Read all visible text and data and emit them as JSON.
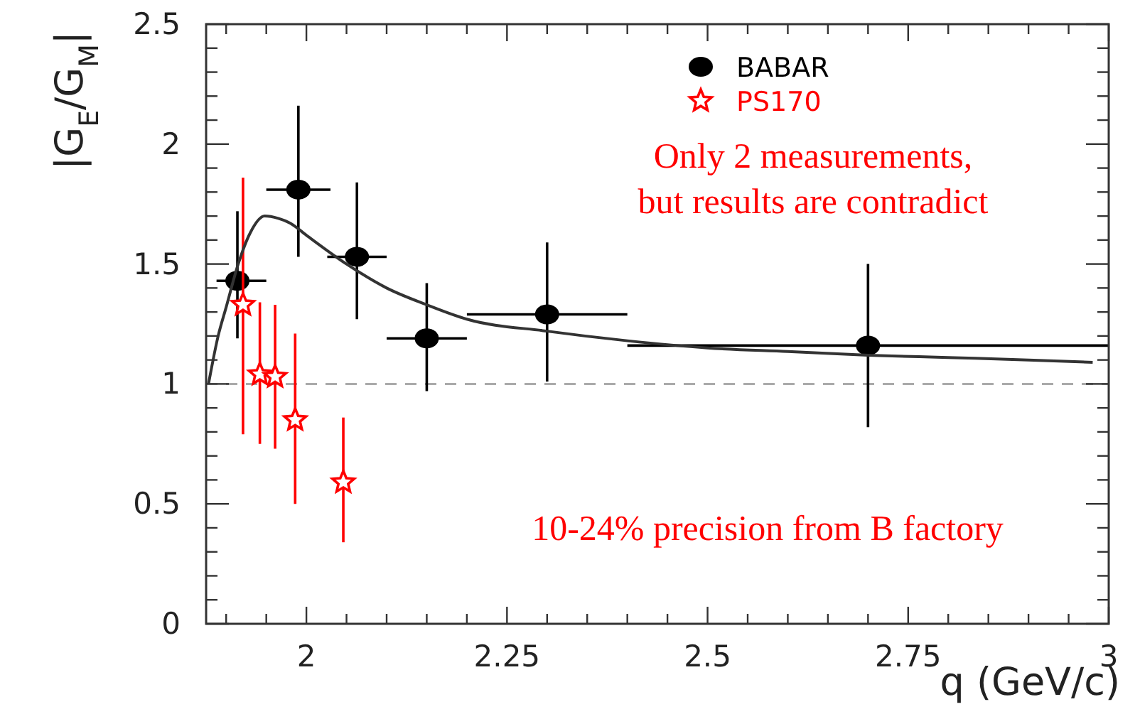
{
  "chart_data": {
    "type": "scatter",
    "xlabel": "q (GeV/c)",
    "ylabel": "|G$_{E}$/G$_{M}$|",
    "xlim": [
      1.875,
      3
    ],
    "ylim": [
      0,
      2.5
    ],
    "xticks": [
      {
        "value": 1.9,
        "label": null
      },
      {
        "value": 1.95,
        "label": null
      },
      2,
      {
        "value": 2.05,
        "label": null
      },
      {
        "value": 2.1,
        "label": null
      },
      {
        "value": 2.15,
        "label": null
      },
      {
        "value": 2.2,
        "label": null
      },
      2.25,
      {
        "value": 2.3,
        "label": null
      },
      {
        "value": 2.35,
        "label": null
      },
      {
        "value": 2.4,
        "label": null
      },
      {
        "value": 2.45,
        "label": null
      },
      2.5,
      {
        "value": 2.55,
        "label": null
      },
      {
        "value": 2.6,
        "label": null
      },
      {
        "value": 2.65,
        "label": null
      },
      {
        "value": 2.7,
        "label": null
      },
      2.75,
      {
        "value": 2.8,
        "label": null
      },
      {
        "value": 2.85,
        "label": null
      },
      {
        "value": 2.9,
        "label": null
      },
      {
        "value": 2.95,
        "label": null
      },
      3
    ],
    "yticks": [
      0,
      {
        "value": 0.1,
        "label": null
      },
      {
        "value": 0.2,
        "label": null
      },
      {
        "value": 0.3,
        "label": null
      },
      {
        "value": 0.4,
        "label": null
      },
      0.5,
      {
        "value": 0.6,
        "label": null
      },
      {
        "value": 0.7,
        "label": null
      },
      {
        "value": 0.8,
        "label": null
      },
      {
        "value": 0.9,
        "label": null
      },
      1,
      {
        "value": 1.1,
        "label": null
      },
      {
        "value": 1.2,
        "label": null
      },
      {
        "value": 1.3,
        "label": null
      },
      {
        "value": 1.4,
        "label": null
      },
      1.5,
      {
        "value": 1.6,
        "label": null
      },
      {
        "value": 1.7,
        "label": null
      },
      {
        "value": 1.8,
        "label": null
      },
      {
        "value": 1.9,
        "label": null
      },
      2,
      {
        "value": 2.1,
        "label": null
      },
      {
        "value": 2.2,
        "label": null
      },
      {
        "value": 2.3,
        "label": null
      },
      {
        "value": 2.4,
        "label": null
      },
      2.5
    ],
    "grid": false,
    "legend": "top right",
    "series": [
      {
        "name": "BABAR",
        "marker": "circle",
        "color": "#000000",
        "x": [
          1.914,
          1.99,
          2.063,
          2.15,
          2.3,
          2.7
        ],
        "values": [
          1.43,
          1.81,
          1.53,
          1.19,
          1.29,
          1.16
        ],
        "errors": [
          [
            1.19,
            1.72
          ],
          [
            1.53,
            2.16
          ],
          [
            1.27,
            1.84
          ],
          [
            0.97,
            1.42
          ],
          [
            1.01,
            1.59
          ],
          [
            0.82,
            1.5
          ]
        ],
        "xerrors": [
          [
            1.888,
            1.95
          ],
          [
            1.95,
            2.03
          ],
          [
            2.026,
            2.1
          ],
          [
            2.1,
            2.2
          ],
          [
            2.2,
            2.4
          ],
          [
            2.4,
            3
          ]
        ]
      },
      {
        "name": "PS170",
        "marker": "star",
        "color": "#ff0000",
        "x": [
          1.921,
          1.942,
          1.961,
          1.986,
          2.046
        ],
        "values": [
          1.33,
          1.04,
          1.03,
          0.85,
          0.59
        ],
        "errors": [
          [
            0.79,
            1.86
          ],
          [
            0.75,
            1.34
          ],
          [
            0.73,
            1.33
          ],
          [
            0.5,
            1.21
          ],
          [
            0.34,
            0.86
          ]
        ]
      },
      {
        "type": "line",
        "marker": "none",
        "line_style": "solid",
        "color": "#333333",
        "x": [
          1.878,
          1.89,
          1.9,
          1.915,
          1.93,
          1.948,
          1.965,
          1.98,
          2.0,
          2.05,
          2.1,
          2.15,
          2.2,
          2.3,
          2.4,
          2.5,
          2.6,
          2.7,
          2.8,
          2.9,
          2.98
        ],
        "values": [
          1.0,
          1.2,
          1.32,
          1.5,
          1.63,
          1.7,
          1.69,
          1.67,
          1.62,
          1.5,
          1.4,
          1.33,
          1.27,
          1.22,
          1.18,
          1.15,
          1.135,
          1.12,
          1.11,
          1.1,
          1.09
        ]
      }
    ],
    "ref_lines": [
      {
        "axis": "y",
        "value": 1,
        "color": "#aaaaaa",
        "line_style": "dashed"
      }
    ],
    "annotations": [
      "Only 2 measurements,\nbut results are contradict",
      "10-24% precision from B factory"
    ]
  }
}
